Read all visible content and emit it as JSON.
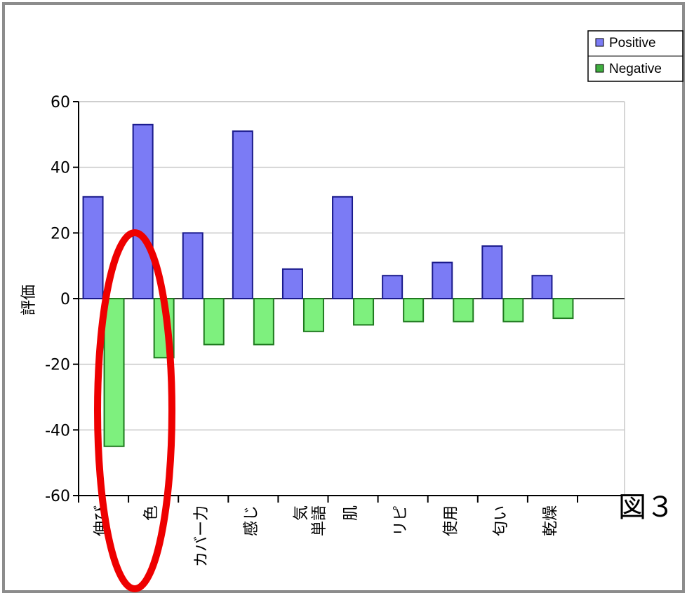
{
  "figure_label": "図３",
  "colors": {
    "positive_fill": "#7b7bf5",
    "positive_stroke": "#1a1a8c",
    "negative_fill": "#7ef07e",
    "negative_stroke": "#1f7a1f",
    "highlight": "#ee0000",
    "grid": "#c8c8c8",
    "frame": "#8c8c8c"
  },
  "chart_data": {
    "type": "bar",
    "ylabel": "評価",
    "xlabel": "",
    "ylim": [
      -60,
      60
    ],
    "yticks": [
      60,
      40,
      20,
      0,
      -20,
      -40,
      -60
    ],
    "grid": true,
    "legend_position": "top-right",
    "categories": [
      "伸び",
      "色",
      "カバー力",
      "感じ",
      "気\n単語",
      "肌",
      "リピ",
      "使用",
      "匂い",
      "乾燥"
    ],
    "series": [
      {
        "name": "Positive",
        "values": [
          31,
          53,
          20,
          51,
          9,
          31,
          7,
          11,
          16,
          7
        ]
      },
      {
        "name": "Negative",
        "values": [
          -45,
          -18,
          -14,
          -14,
          -10,
          -8,
          -7,
          -7,
          -7,
          -6
        ]
      }
    ],
    "annotation": {
      "type": "ellipse-highlight",
      "category": "伸び"
    }
  }
}
